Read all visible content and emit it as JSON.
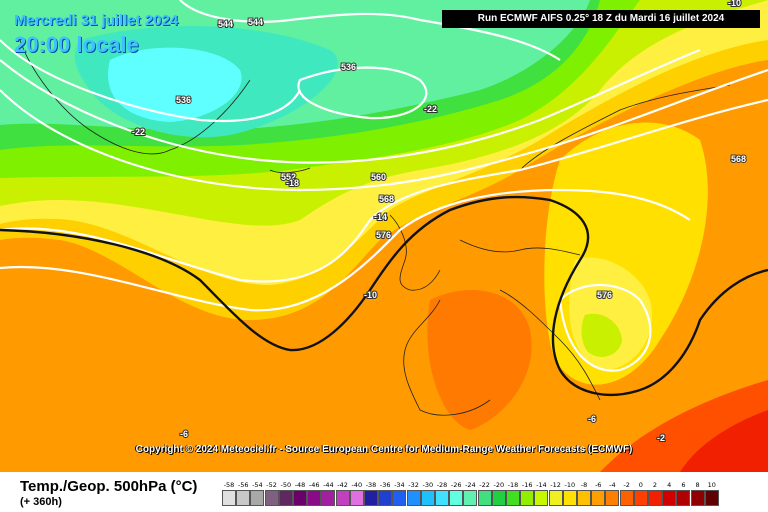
{
  "header": {
    "date_label": "Mercredi 31 juillet 2024",
    "time_label": "20:00 locale",
    "run_label": "Run ECMWF AIFS 0.25° 18 Z du Mardi 16 juillet 2024"
  },
  "copyright": "Copyright © 2024 Meteociel.fr - Source European Centre for Medium-Range Weather Forecasts (ECMWF)",
  "map": {
    "geopotential_labels_dam": [
      "544",
      "544",
      "536",
      "536",
      "552",
      "560",
      "568",
      "576",
      "576",
      "568"
    ],
    "temperature_labels_c": [
      "-22",
      "-22",
      "-18",
      "-14",
      "-10",
      "-6",
      "-6",
      "-2",
      "-10"
    ]
  },
  "legend": {
    "title": "Temp./Geop. 500hPa (°C)",
    "subtitle": "(+ 360h)",
    "scale": [
      {
        "v": "-58",
        "c": "#e0e0e0"
      },
      {
        "v": "-56",
        "c": "#c8c8c8"
      },
      {
        "v": "-54",
        "c": "#a8a8a8"
      },
      {
        "v": "-52",
        "c": "#806080"
      },
      {
        "v": "-50",
        "c": "#602860"
      },
      {
        "v": "-48",
        "c": "#6a006a"
      },
      {
        "v": "-46",
        "c": "#8a0a8a"
      },
      {
        "v": "-44",
        "c": "#a020a0"
      },
      {
        "v": "-42",
        "c": "#c040c0"
      },
      {
        "v": "-40",
        "c": "#e070e0"
      },
      {
        "v": "-38",
        "c": "#2020a0"
      },
      {
        "v": "-36",
        "c": "#2040d0"
      },
      {
        "v": "-34",
        "c": "#2060f0"
      },
      {
        "v": "-32",
        "c": "#2090ff"
      },
      {
        "v": "-30",
        "c": "#20c0ff"
      },
      {
        "v": "-28",
        "c": "#40e0ff"
      },
      {
        "v": "-26",
        "c": "#60ffe0"
      },
      {
        "v": "-24",
        "c": "#60f0b0"
      },
      {
        "v": "-22",
        "c": "#40e080"
      },
      {
        "v": "-20",
        "c": "#20d040"
      },
      {
        "v": "-18",
        "c": "#40e020"
      },
      {
        "v": "-16",
        "c": "#90f000"
      },
      {
        "v": "-14",
        "c": "#c8f800"
      },
      {
        "v": "-12",
        "c": "#f0f020"
      },
      {
        "v": "-10",
        "c": "#ffe000"
      },
      {
        "v": "-8",
        "c": "#ffc000"
      },
      {
        "v": "-6",
        "c": "#ffa000"
      },
      {
        "v": "-4",
        "c": "#ff8000"
      },
      {
        "v": "-2",
        "c": "#ff6000"
      },
      {
        "v": "0",
        "c": "#ff4000"
      },
      {
        "v": "2",
        "c": "#f02000"
      },
      {
        "v": "4",
        "c": "#d00000"
      },
      {
        "v": "6",
        "c": "#b00000"
      },
      {
        "v": "8",
        "c": "#900000"
      },
      {
        "v": "10",
        "c": "#600000"
      }
    ]
  }
}
